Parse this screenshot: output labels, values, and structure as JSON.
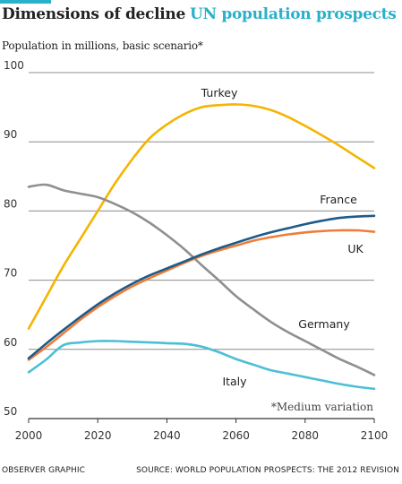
{
  "header": {
    "title_main": "Dimensions of decline",
    "title_sub": "UN population prospects",
    "subtitle": "Population in millions, basic scenario*"
  },
  "footer": {
    "left": "OBSERVER GRAPHIC",
    "right": "SOURCE:  WORLD POPULATION PROSPECTS: THE 2012 REVISION"
  },
  "colors": {
    "title_main": "#222222",
    "title_sub": "#2ab0c9",
    "topbar": "#2ab0c9",
    "grid": "#8c8c8c",
    "text": "#333333"
  },
  "chart_data": {
    "type": "line",
    "title": "Dimensions of decline UN population prospects",
    "ylabel": "Population in millions, basic scenario*",
    "xlabel": "",
    "xlim": [
      2000,
      2100
    ],
    "ylim": [
      50,
      100
    ],
    "x_ticks": [
      2000,
      2020,
      2040,
      2060,
      2080,
      2100
    ],
    "y_ticks": [
      50,
      60,
      70,
      80,
      90,
      100
    ],
    "grid": "horizontal",
    "annotation": "*Medium variation",
    "series": [
      {
        "name": "Turkey",
        "color": "#f5b400",
        "x": [
          2000,
          2005,
          2010,
          2015,
          2020,
          2025,
          2030,
          2035,
          2040,
          2045,
          2050,
          2055,
          2060,
          2065,
          2070,
          2075,
          2080,
          2085,
          2090,
          2095,
          2100
        ],
        "values": [
          63,
          67.5,
          72,
          76,
          80,
          84,
          87.5,
          90.5,
          92.5,
          94,
          95,
          95.3,
          95.4,
          95.2,
          94.6,
          93.6,
          92.3,
          90.9,
          89.4,
          87.8,
          86.2
        ]
      },
      {
        "name": "France",
        "color": "#1d5b8a",
        "x": [
          2000,
          2005,
          2010,
          2015,
          2020,
          2025,
          2030,
          2035,
          2040,
          2045,
          2050,
          2055,
          2060,
          2065,
          2070,
          2075,
          2080,
          2085,
          2090,
          2095,
          2100
        ],
        "values": [
          58.7,
          60.8,
          62.8,
          64.7,
          66.5,
          68.1,
          69.5,
          70.7,
          71.7,
          72.7,
          73.7,
          74.6,
          75.4,
          76.2,
          76.9,
          77.5,
          78.1,
          78.6,
          79.0,
          79.2,
          79.3
        ]
      },
      {
        "name": "UK",
        "color": "#ee7d3b",
        "x": [
          2000,
          2005,
          2010,
          2015,
          2020,
          2025,
          2030,
          2035,
          2040,
          2045,
          2050,
          2055,
          2060,
          2065,
          2070,
          2075,
          2080,
          2085,
          2090,
          2095,
          2100
        ],
        "values": [
          58.5,
          60.3,
          62.3,
          64.3,
          66.1,
          67.7,
          69.1,
          70.3,
          71.4,
          72.5,
          73.5,
          74.3,
          75.0,
          75.7,
          76.2,
          76.6,
          76.9,
          77.1,
          77.2,
          77.2,
          77.0
        ]
      },
      {
        "name": "Germany",
        "color": "#8f8f8f",
        "x": [
          2000,
          2005,
          2010,
          2015,
          2020,
          2025,
          2030,
          2035,
          2040,
          2045,
          2050,
          2055,
          2060,
          2065,
          2070,
          2075,
          2080,
          2085,
          2090,
          2095,
          2100
        ],
        "values": [
          83.5,
          83.8,
          83.0,
          82.5,
          82.0,
          81.0,
          79.8,
          78.3,
          76.5,
          74.5,
          72.2,
          70.0,
          67.7,
          65.8,
          64.0,
          62.5,
          61.2,
          59.9,
          58.6,
          57.5,
          56.3
        ]
      },
      {
        "name": "Italy",
        "color": "#4cbfd6",
        "x": [
          2000,
          2005,
          2010,
          2015,
          2020,
          2025,
          2030,
          2035,
          2040,
          2045,
          2050,
          2055,
          2060,
          2065,
          2070,
          2075,
          2080,
          2085,
          2090,
          2095,
          2100
        ],
        "values": [
          56.7,
          58.5,
          60.6,
          61.0,
          61.2,
          61.2,
          61.1,
          61.0,
          60.9,
          60.8,
          60.4,
          59.6,
          58.6,
          57.8,
          57.0,
          56.5,
          56.0,
          55.5,
          55.0,
          54.6,
          54.3
        ]
      }
    ]
  }
}
